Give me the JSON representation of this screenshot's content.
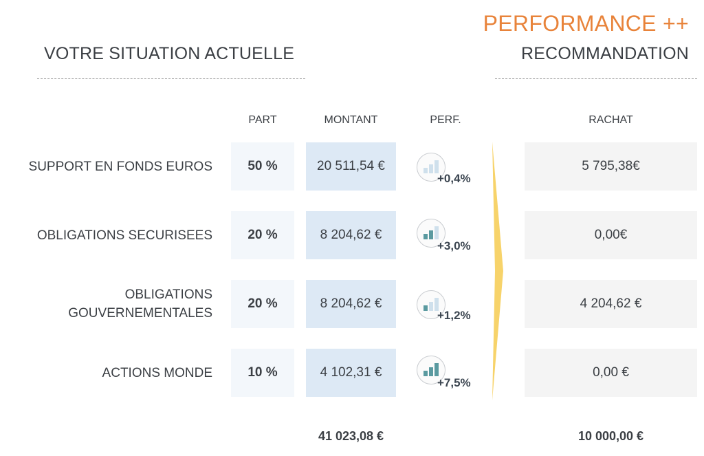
{
  "header": {
    "left_title": "VOTRE SITUATION ACTUELLE",
    "perf_title": "PERFORMANCE ++",
    "right_title": "RECOMMANDATION"
  },
  "columns": {
    "part": "PART",
    "montant": "MONTANT",
    "perf": "PERF.",
    "rachat": "RACHAT"
  },
  "rows": [
    {
      "label": "SUPPORT EN FONDS EUROS",
      "part": "50 %",
      "montant": "20 511,54 €",
      "perf": "+0,4%",
      "icon": "bar-chart-icon",
      "bar_level": 0,
      "rachat": "5 795,38€"
    },
    {
      "label": "OBLIGATIONS SECURISEES",
      "part": "20 %",
      "montant": "8 204,62 €",
      "perf": "+3,0%",
      "icon": "bar-chart-icon",
      "bar_level": 2,
      "rachat": "0,00€"
    },
    {
      "label": "OBLIGATIONS\nGOUVERNEMENTALES",
      "part": "20 %",
      "montant": "8 204,62 €",
      "perf": "+1,2%",
      "icon": "bar-chart-icon",
      "bar_level": 1,
      "rachat": "4 204,62 €"
    },
    {
      "label": "ACTIONS MONDE",
      "part": "10 %",
      "montant": "4 102,31 €",
      "perf": "+7,5%",
      "icon": "bar-chart-icon",
      "bar_level": 3,
      "rachat": "0,00 €"
    }
  ],
  "totals": {
    "montant": "41 023,08 €",
    "rachat": "10 000,00 €"
  },
  "colors": {
    "accent": "#e8833a",
    "arrow": "#f7d36a",
    "bar_active": "#5a9aa0",
    "bar_inactive": "#cfe0ec"
  }
}
